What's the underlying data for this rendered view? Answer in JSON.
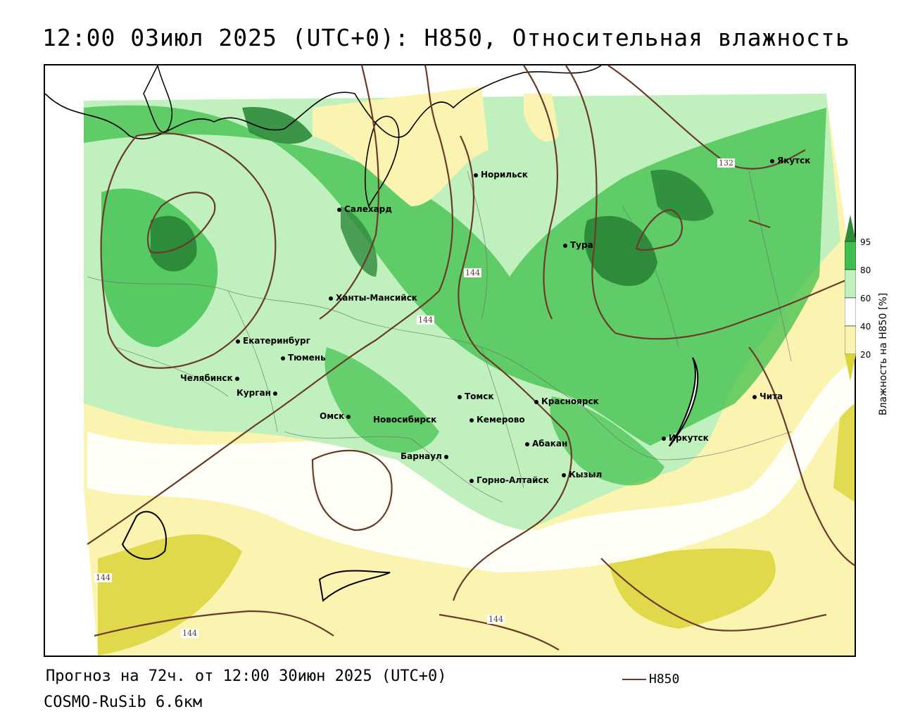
{
  "title": "12:00 03июл 2025 (UTC+0): H850, Относительная влажность",
  "footer": {
    "forecast": "Прогноз на 72ч. от 12:00 30июн 2025 (UTC+0)",
    "model": "COSMO-RuSib 6.6км",
    "contour_legend": "H850"
  },
  "colorbar": {
    "title": "Влажность на H850 [%]",
    "ticks": [
      "95",
      "80",
      "60",
      "40",
      "20"
    ],
    "colors": {
      "c95": "#2e8b3a",
      "c80": "#3fc04c",
      "c60": "#bff0bd",
      "c40": "#ffffff",
      "c20": "#fbf3b0",
      "c0": "#d9d43a"
    }
  },
  "contours": {
    "color": "#6b3b2a",
    "labels": [
      "144",
      "144",
      "132",
      "144",
      "144",
      "144"
    ]
  },
  "cities": [
    {
      "name": "Норильск"
    },
    {
      "name": "Якутск"
    },
    {
      "name": "Салехард"
    },
    {
      "name": "Тура"
    },
    {
      "name": "Ханты-Мансийск"
    },
    {
      "name": "Екатеринбург"
    },
    {
      "name": "Тюмень"
    },
    {
      "name": "Челябинск"
    },
    {
      "name": "Курган"
    },
    {
      "name": "Омск"
    },
    {
      "name": "Новосибирск"
    },
    {
      "name": "Томск"
    },
    {
      "name": "Кемерово"
    },
    {
      "name": "Красноярск"
    },
    {
      "name": "Барнаул"
    },
    {
      "name": "Абакан"
    },
    {
      "name": "Горно-Алтайск"
    },
    {
      "name": "Кызыл"
    },
    {
      "name": "Иркутск"
    },
    {
      "name": "Чита"
    }
  ]
}
